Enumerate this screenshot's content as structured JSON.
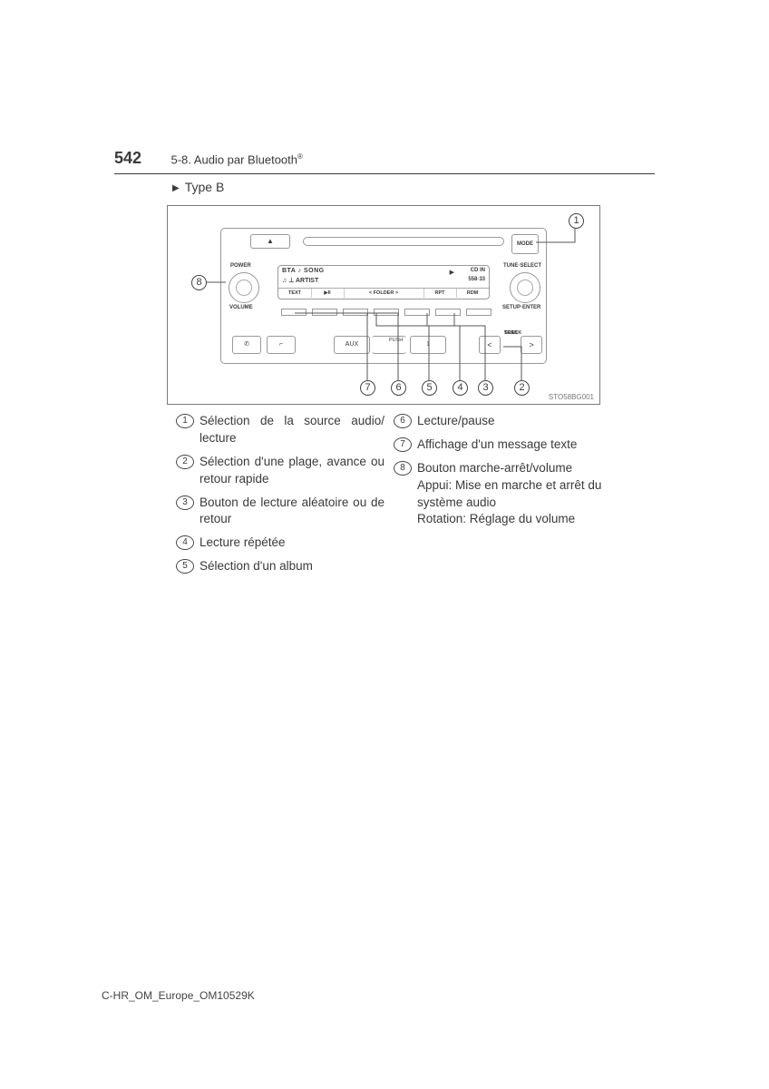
{
  "page_number": "542",
  "section_label": "5-8. Audio par Bluetooth",
  "registered_mark": "®",
  "type_label": "Type B",
  "radio": {
    "eject_glyph": "▲",
    "mode_label": "MODE",
    "power_label": "POWER",
    "volume_label": "VOLUME",
    "tune_label": "TUNE·SELECT",
    "setup_label": "SETUP·ENTER",
    "display": {
      "line1_left": "BTA ♪ SONG",
      "line1_right": "CD IN",
      "play_glyph": "▶",
      "line2_left": "♫   ⊥ ARTIST",
      "line2_right": "558·33",
      "cells": [
        "TEXT",
        "▶II",
        "<  FOLDER  >",
        "RPT",
        "RDM"
      ]
    },
    "aux_label": "AUX",
    "push_label": "PUSH",
    "usb_glyph": "⟟",
    "seek_left": "<",
    "seek_label_top": "SEEK",
    "seek_label_bot": "TRACK",
    "seek_right": ">",
    "phone_glyph": "✆",
    "hangup_glyph": "⌐"
  },
  "image_code": "STO58BG001",
  "legend": {
    "left": [
      {
        "n": "1",
        "t": "Sélection de la source audio/ lecture",
        "j": true
      },
      {
        "n": "2",
        "t": "Sélection d'une plage, avance ou retour rapide",
        "j": true
      },
      {
        "n": "3",
        "t": "Bouton de lecture aléatoire ou de retour",
        "j": true
      },
      {
        "n": "4",
        "t": "Lecture répétée",
        "j": false
      },
      {
        "n": "5",
        "t": "Sélection d'un album",
        "j": false
      }
    ],
    "right": [
      {
        "n": "6",
        "t": "Lecture/pause",
        "j": false
      },
      {
        "n": "7",
        "t": "Affichage d'un message texte",
        "j": false
      },
      {
        "n": "8",
        "t": "Bouton marche-arrêt/volume\nAppui: Mise en marche et arrêt du système audio\nRotation: Réglage du volume",
        "j": false
      }
    ]
  },
  "footer": "C-HR_OM_Europe_OM10529K"
}
